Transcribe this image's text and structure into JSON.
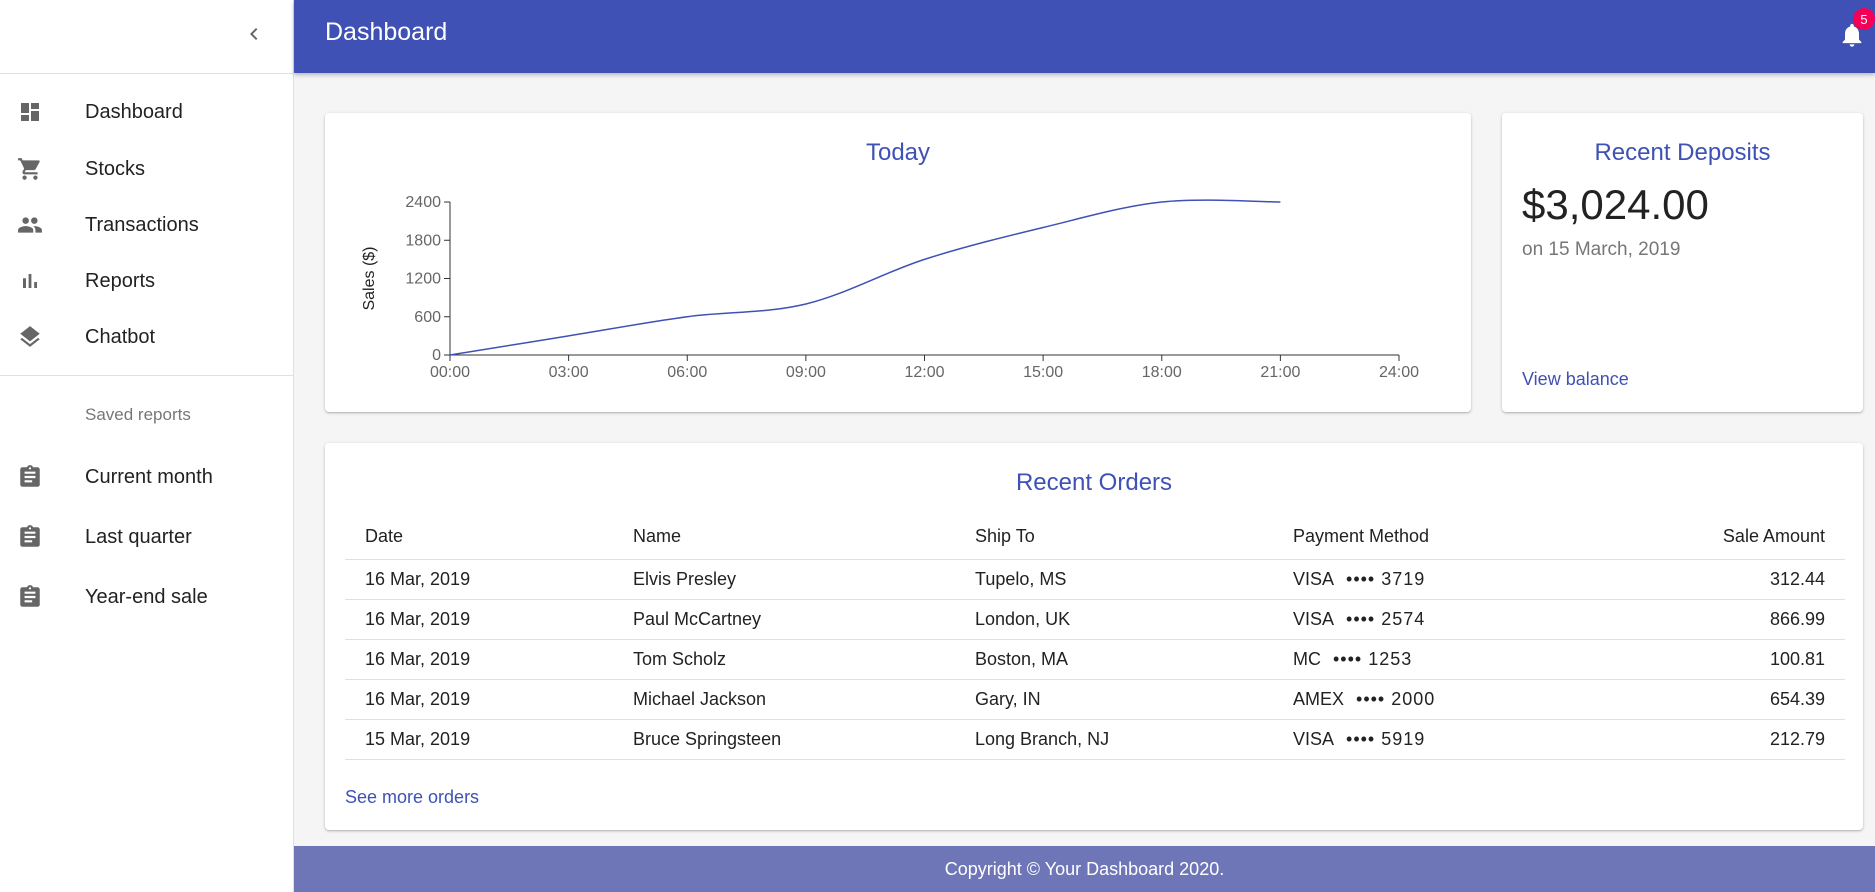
{
  "appbar": {
    "title": "Dashboard",
    "notification_count": "5"
  },
  "sidebar": {
    "items": [
      {
        "label": "Dashboard",
        "icon": "dashboard-icon"
      },
      {
        "label": "Stocks",
        "icon": "cart-icon"
      },
      {
        "label": "Transactions",
        "icon": "people-icon"
      },
      {
        "label": "Reports",
        "icon": "bar-chart-icon"
      },
      {
        "label": "Chatbot",
        "icon": "layers-icon"
      }
    ],
    "saved_header": "Saved reports",
    "saved_items": [
      {
        "label": "Current month",
        "icon": "assignment-icon"
      },
      {
        "label": "Last quarter",
        "icon": "assignment-icon"
      },
      {
        "label": "Year-end sale",
        "icon": "assignment-icon"
      }
    ]
  },
  "chart_data": {
    "type": "line",
    "title": "Today",
    "ylabel": "Sales ($)",
    "xlabel": "",
    "x_ticks": [
      "00:00",
      "03:00",
      "06:00",
      "09:00",
      "12:00",
      "15:00",
      "18:00",
      "21:00",
      "24:00"
    ],
    "y_ticks": [
      "0",
      "600",
      "1200",
      "1800",
      "2400"
    ],
    "ylim": [
      0,
      2400
    ],
    "xlim_hours": [
      0,
      24
    ],
    "series": [
      {
        "x": [
          "00:00",
          "03:00",
          "06:00",
          "09:00",
          "12:00",
          "15:00",
          "18:00",
          "21:00"
        ],
        "values": [
          0,
          300,
          600,
          800,
          1500,
          2000,
          2400,
          2400
        ]
      }
    ],
    "color": "#3f51b5"
  },
  "deposits": {
    "title": "Recent Deposits",
    "amount": "$3,024.00",
    "date": "on 15 March, 2019",
    "link": "View balance"
  },
  "orders": {
    "title": "Recent Orders",
    "columns": [
      "Date",
      "Name",
      "Ship To",
      "Payment Method",
      "Sale Amount"
    ],
    "rows": [
      {
        "date": "16 Mar, 2019",
        "name": "Elvis Presley",
        "ship_to": "Tupelo, MS",
        "card": "VISA",
        "last4": "•••• 3719",
        "amount": "312.44"
      },
      {
        "date": "16 Mar, 2019",
        "name": "Paul McCartney",
        "ship_to": "London, UK",
        "card": "VISA",
        "last4": "•••• 2574",
        "amount": "866.99"
      },
      {
        "date": "16 Mar, 2019",
        "name": "Tom Scholz",
        "ship_to": "Boston, MA",
        "card": "MC",
        "last4": "•••• 1253",
        "amount": "100.81"
      },
      {
        "date": "16 Mar, 2019",
        "name": "Michael Jackson",
        "ship_to": "Gary, IN",
        "card": "AMEX",
        "last4": "•••• 2000",
        "amount": "654.39"
      },
      {
        "date": "15 Mar, 2019",
        "name": "Bruce Springsteen",
        "ship_to": "Long Branch, NJ",
        "card": "VISA",
        "last4": "•••• 5919",
        "amount": "212.79"
      }
    ],
    "link": "See more orders"
  },
  "footer": {
    "text": "Copyright © Your Dashboard 2020."
  }
}
